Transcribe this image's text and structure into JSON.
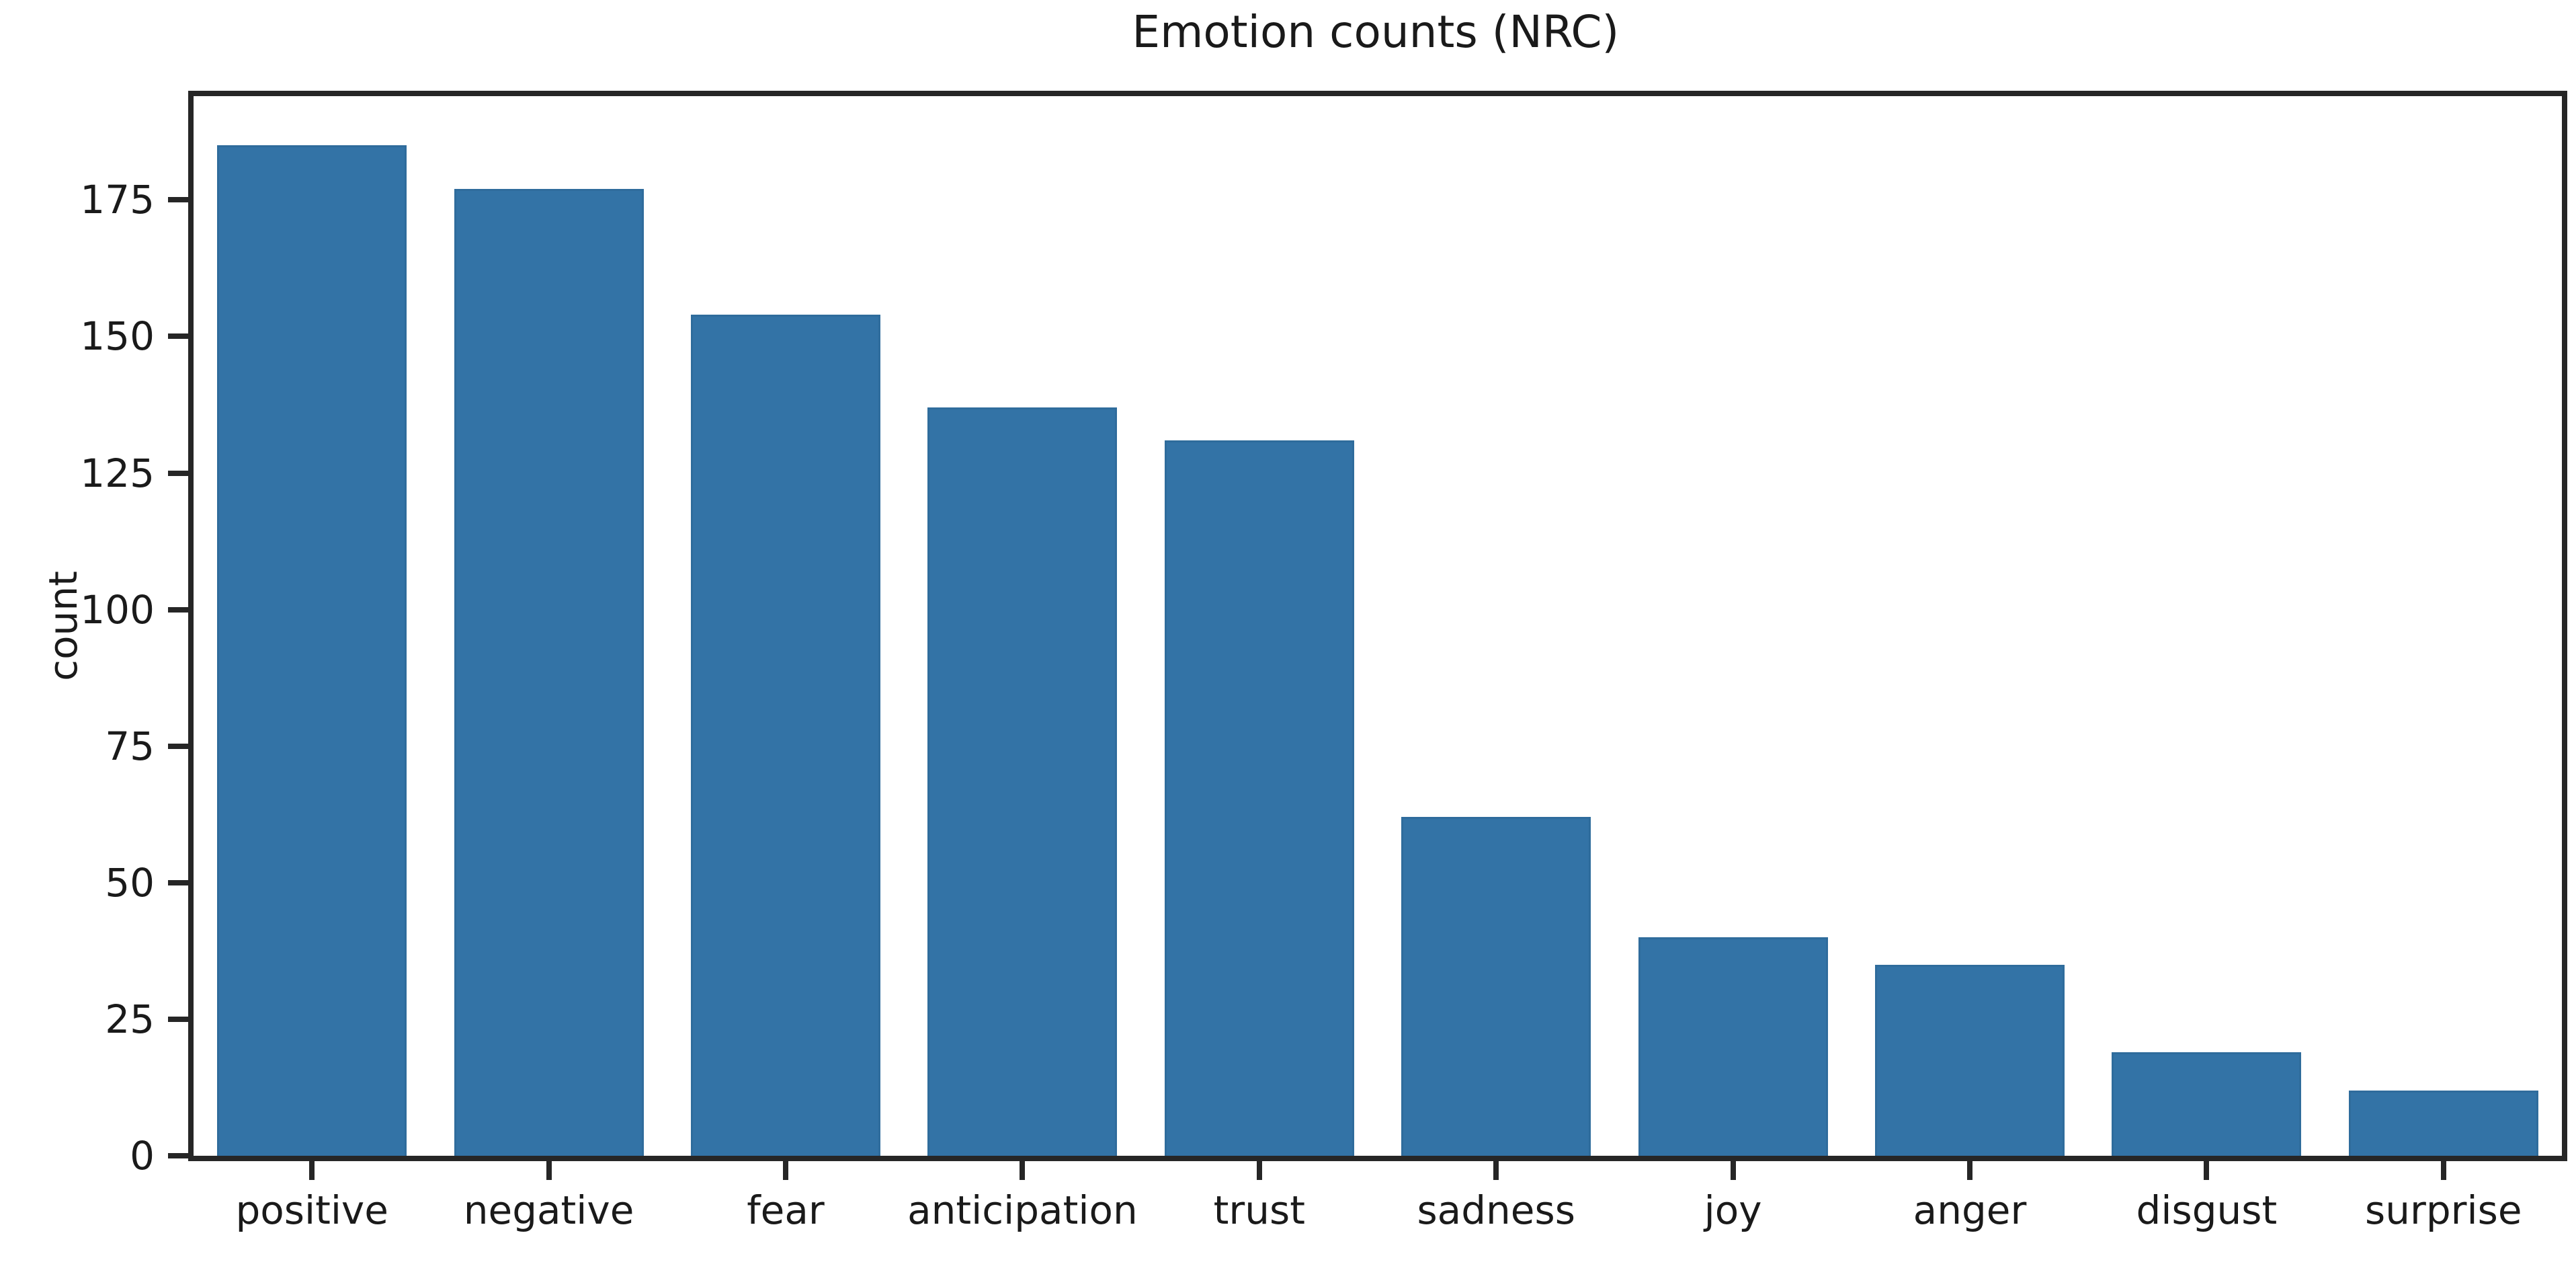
{
  "figure": {
    "background": "#ffffff",
    "text_color": "#1a1a1a",
    "spine_color": "#262626"
  },
  "chart_data": {
    "type": "bar",
    "title": "Emotion counts (NRC)",
    "xlabel": "",
    "ylabel": "count",
    "categories": [
      "positive",
      "negative",
      "fear",
      "anticipation",
      "trust",
      "sadness",
      "joy",
      "anger",
      "disgust",
      "surprise"
    ],
    "values": [
      185,
      177,
      154,
      137,
      131,
      62,
      40,
      35,
      19,
      12
    ],
    "yticks": [
      0,
      25,
      50,
      75,
      100,
      125,
      150,
      175
    ],
    "ylim": [
      0,
      194
    ],
    "bar_color": "#3373A6",
    "bar_edge_color": "#2F6C9C",
    "bar_width_fraction": 0.8,
    "grid": false,
    "legend_position": "none"
  }
}
